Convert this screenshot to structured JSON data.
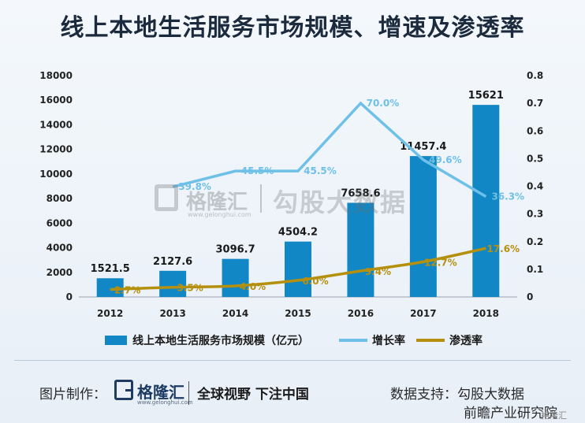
{
  "title": "线上本地生活服务市场规模、增速及渗透率",
  "chart_data": {
    "type": "bar",
    "categories": [
      "2012",
      "2013",
      "2014",
      "2015",
      "2016",
      "2017",
      "2018"
    ],
    "series": [
      {
        "name": "线上本地生活服务市场规模（亿元）",
        "type": "bar",
        "axis": "left",
        "values": [
          1521.5,
          2127.6,
          3096.7,
          4504.2,
          7658.6,
          11457.4,
          15621
        ],
        "labels": [
          "1521.5",
          "2127.6",
          "3096.7",
          "4504.2",
          "7658.6",
          "11457.4",
          "15621"
        ],
        "color": "#1287c5"
      },
      {
        "name": "增长率",
        "type": "line",
        "axis": "right",
        "values": [
          null,
          0.398,
          0.455,
          0.455,
          0.7,
          0.496,
          0.363
        ],
        "labels": [
          "",
          "39.8%",
          "45.5%",
          "45.5%",
          "70.0%",
          "49.6%",
          "36.3%"
        ],
        "color": "#6fc0e8"
      },
      {
        "name": "渗透率",
        "type": "line",
        "axis": "right",
        "values": [
          0.027,
          0.035,
          0.04,
          0.06,
          0.094,
          0.127,
          0.176
        ],
        "labels": [
          "2.7%",
          "3.5%",
          "4.0%",
          "6.0%",
          "9.4%",
          "12.7%",
          "17.6%"
        ],
        "color": "#b5900f"
      }
    ],
    "y_left": {
      "min": 0,
      "max": 18000,
      "ticks": [
        "0",
        "2000",
        "4000",
        "6000",
        "8000",
        "10000",
        "12000",
        "14000",
        "16000",
        "18000"
      ]
    },
    "y_right": {
      "min": 0,
      "max": 0.8,
      "ticks": [
        "0",
        "0.1",
        "0.2",
        "0.3",
        "0.4",
        "0.5",
        "0.6",
        "0.7",
        "0.8"
      ]
    },
    "legend_position": "bottom",
    "grid": false
  },
  "watermark": {
    "brand": "格隆汇",
    "site": "www.gelonghui.com",
    "name": "勾股大数据"
  },
  "footer": {
    "made_label": "图片制作：",
    "brand": "格隆汇",
    "site": "www.gelonghui.com",
    "slogan": "全球视野 下注中国",
    "support_label": "数据支持：",
    "support_source1": "勾股大数据",
    "support_source2": "前瞻产业研究院",
    "corner": "格隆汇"
  }
}
